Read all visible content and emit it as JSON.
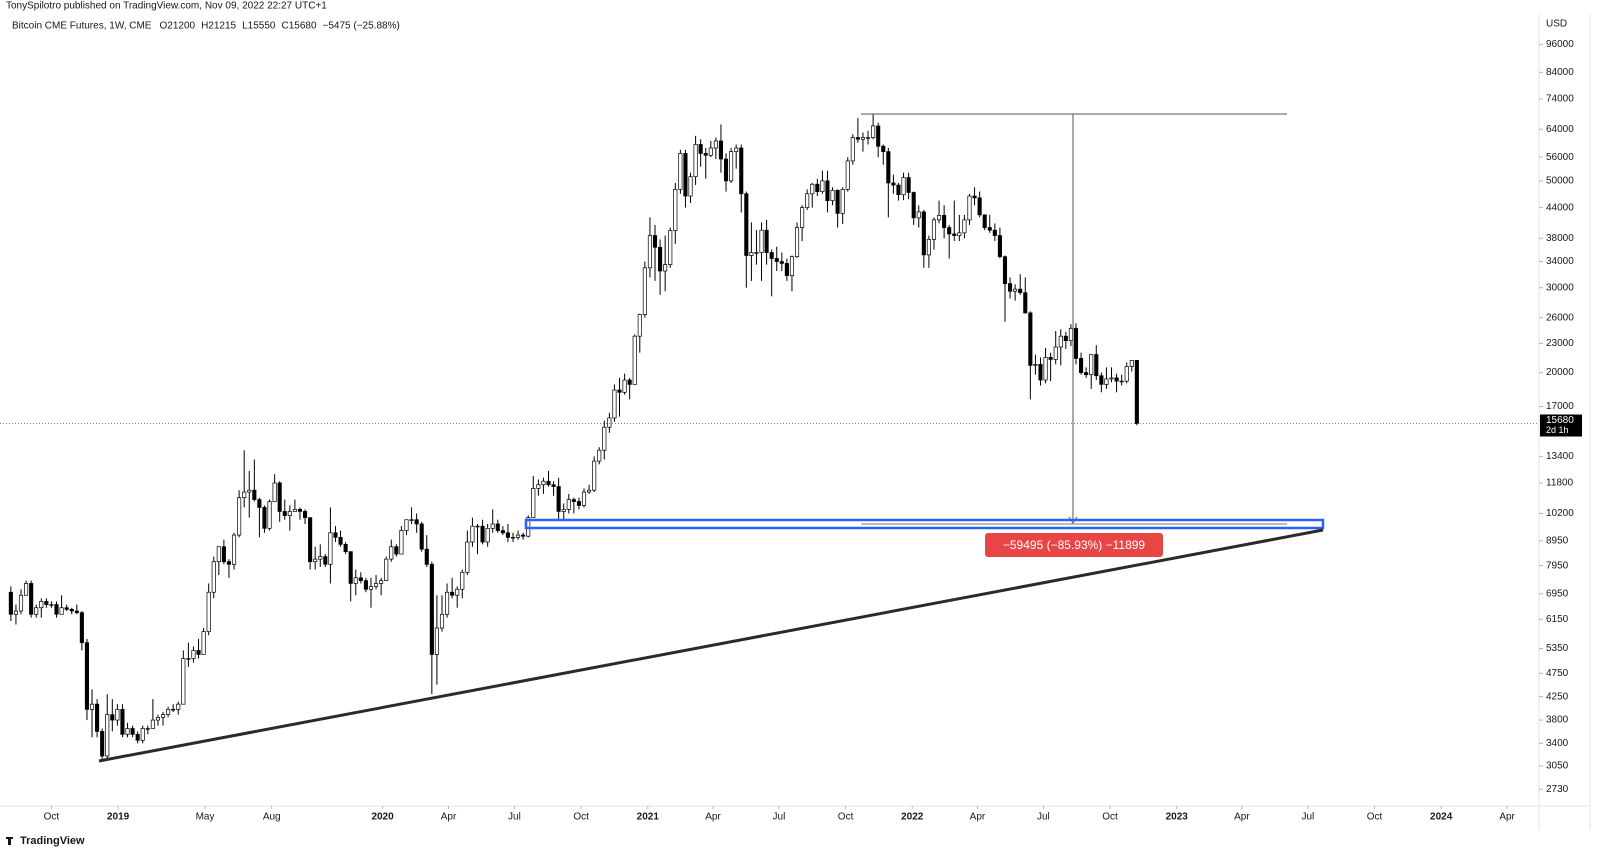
{
  "header": {
    "publisher": "TonySpilotro published on TradingView.com, Nov 09, 2022 22:27 UTC+1",
    "symbol": "Bitcoin CME Futures, 1W, CME",
    "ohlc": [
      "O21200",
      "H21215",
      "L15550",
      "C15680",
      "−5475 (−25.88%)"
    ],
    "brand": "TradingView"
  },
  "chart_data": {
    "type": "candlestick",
    "y_axis_label": "USD",
    "log_scale": true,
    "grid": false,
    "up_color": "#ffffff",
    "down_color": "#000000",
    "outline_color": "#000000",
    "measure_label": "−59495 (−85.93%) −11899",
    "countdown": "2d 1h",
    "xlim": [
      "2018-07-22",
      "2024-05-15"
    ],
    "ylim": [
      2520,
      111000
    ],
    "yticks": [
      96000,
      84000,
      74000,
      64000,
      56000,
      50000,
      44000,
      38000,
      34000,
      30000,
      26000,
      23000,
      20000,
      17000,
      13400,
      11800,
      10200,
      8950,
      7950,
      6950,
      6150,
      5350,
      4750,
      4250,
      3800,
      3400,
      3050,
      2730
    ],
    "xticks": [
      {
        "value": "2018-10-01",
        "label": "Oct"
      },
      {
        "value": "2019-01-01",
        "label": "2019"
      },
      {
        "value": "2019-05-01",
        "label": "May"
      },
      {
        "value": "2019-08-01",
        "label": "Aug"
      },
      {
        "value": "2020-01-01",
        "label": "2020"
      },
      {
        "value": "2020-04-01",
        "label": "Apr"
      },
      {
        "value": "2020-07-01",
        "label": "Jul"
      },
      {
        "value": "2020-10-01",
        "label": "Oct"
      },
      {
        "value": "2021-01-01",
        "label": "2021"
      },
      {
        "value": "2021-04-01",
        "label": "Apr"
      },
      {
        "value": "2021-07-01",
        "label": "Jul"
      },
      {
        "value": "2021-10-01",
        "label": "Oct"
      },
      {
        "value": "2022-01-01",
        "label": "2022"
      },
      {
        "value": "2022-04-01",
        "label": "Apr"
      },
      {
        "value": "2022-07-01",
        "label": "Jul"
      },
      {
        "value": "2022-10-01",
        "label": "Oct"
      },
      {
        "value": "2023-01-01",
        "label": "2023"
      },
      {
        "value": "2023-04-01",
        "label": "Apr"
      },
      {
        "value": "2023-07-01",
        "label": "Jul"
      },
      {
        "value": "2023-10-01",
        "label": "Oct"
      },
      {
        "value": "2024-01-01",
        "label": "2024"
      },
      {
        "value": "2024-04-01",
        "label": "Apr"
      }
    ],
    "x": [
      "2018-08-06",
      "2018-08-13",
      "2018-08-20",
      "2018-08-27",
      "2018-09-03",
      "2018-09-10",
      "2018-09-17",
      "2018-09-24",
      "2018-10-01",
      "2018-10-08",
      "2018-10-15",
      "2018-10-22",
      "2018-10-29",
      "2018-11-05",
      "2018-11-12",
      "2018-11-19",
      "2018-11-26",
      "2018-12-03",
      "2018-12-10",
      "2018-12-17",
      "2018-12-24",
      "2018-12-31",
      "2019-01-07",
      "2019-01-14",
      "2019-01-21",
      "2019-01-28",
      "2019-02-04",
      "2019-02-11",
      "2019-02-18",
      "2019-02-25",
      "2019-03-04",
      "2019-03-11",
      "2019-03-18",
      "2019-03-25",
      "2019-04-01",
      "2019-04-08",
      "2019-04-15",
      "2019-04-22",
      "2019-04-29",
      "2019-05-06",
      "2019-05-13",
      "2019-05-20",
      "2019-05-27",
      "2019-06-03",
      "2019-06-10",
      "2019-06-17",
      "2019-06-24",
      "2019-07-01",
      "2019-07-08",
      "2019-07-15",
      "2019-07-22",
      "2019-07-29",
      "2019-08-05",
      "2019-08-12",
      "2019-08-19",
      "2019-08-26",
      "2019-09-02",
      "2019-09-09",
      "2019-09-16",
      "2019-09-23",
      "2019-09-30",
      "2019-10-07",
      "2019-10-14",
      "2019-10-21",
      "2019-10-28",
      "2019-11-04",
      "2019-11-11",
      "2019-11-18",
      "2019-11-25",
      "2019-12-02",
      "2019-12-09",
      "2019-12-16",
      "2019-12-23",
      "2019-12-30",
      "2020-01-06",
      "2020-01-13",
      "2020-01-20",
      "2020-01-27",
      "2020-02-03",
      "2020-02-10",
      "2020-02-17",
      "2020-02-24",
      "2020-03-02",
      "2020-03-09",
      "2020-03-16",
      "2020-03-23",
      "2020-03-30",
      "2020-04-06",
      "2020-04-13",
      "2020-04-20",
      "2020-04-27",
      "2020-05-04",
      "2020-05-11",
      "2020-05-18",
      "2020-05-25",
      "2020-06-01",
      "2020-06-08",
      "2020-06-15",
      "2020-06-22",
      "2020-06-29",
      "2020-07-06",
      "2020-07-13",
      "2020-07-20",
      "2020-07-27",
      "2020-08-03",
      "2020-08-10",
      "2020-08-17",
      "2020-08-24",
      "2020-08-31",
      "2020-09-07",
      "2020-09-14",
      "2020-09-21",
      "2020-09-28",
      "2020-10-05",
      "2020-10-12",
      "2020-10-19",
      "2020-10-26",
      "2020-11-02",
      "2020-11-09",
      "2020-11-16",
      "2020-11-23",
      "2020-11-30",
      "2020-12-07",
      "2020-12-14",
      "2020-12-21",
      "2020-12-28",
      "2021-01-04",
      "2021-01-11",
      "2021-01-18",
      "2021-01-25",
      "2021-02-01",
      "2021-02-08",
      "2021-02-15",
      "2021-02-22",
      "2021-03-01",
      "2021-03-08",
      "2021-03-15",
      "2021-03-22",
      "2021-03-29",
      "2021-04-05",
      "2021-04-12",
      "2021-04-19",
      "2021-04-26",
      "2021-05-03",
      "2021-05-10",
      "2021-05-17",
      "2021-05-24",
      "2021-05-31",
      "2021-06-07",
      "2021-06-14",
      "2021-06-21",
      "2021-06-28",
      "2021-07-05",
      "2021-07-12",
      "2021-07-19",
      "2021-07-26",
      "2021-08-02",
      "2021-08-09",
      "2021-08-16",
      "2021-08-23",
      "2021-08-30",
      "2021-09-06",
      "2021-09-13",
      "2021-09-20",
      "2021-09-27",
      "2021-10-04",
      "2021-10-11",
      "2021-10-18",
      "2021-10-25",
      "2021-11-01",
      "2021-11-08",
      "2021-11-15",
      "2021-11-22",
      "2021-11-29",
      "2021-12-06",
      "2021-12-13",
      "2021-12-20",
      "2021-12-27",
      "2022-01-03",
      "2022-01-10",
      "2022-01-17",
      "2022-01-24",
      "2022-01-31",
      "2022-02-07",
      "2022-02-14",
      "2022-02-21",
      "2022-02-28",
      "2022-03-07",
      "2022-03-14",
      "2022-03-21",
      "2022-03-28",
      "2022-04-04",
      "2022-04-11",
      "2022-04-18",
      "2022-04-25",
      "2022-05-02",
      "2022-05-09",
      "2022-05-16",
      "2022-05-23",
      "2022-05-30",
      "2022-06-06",
      "2022-06-13",
      "2022-06-20",
      "2022-06-27",
      "2022-07-04",
      "2022-07-11",
      "2022-07-18",
      "2022-07-25",
      "2022-08-01",
      "2022-08-08",
      "2022-08-15",
      "2022-08-22",
      "2022-08-29",
      "2022-09-05",
      "2022-09-12",
      "2022-09-19",
      "2022-09-26",
      "2022-10-03",
      "2022-10-10",
      "2022-10-17",
      "2022-10-24",
      "2022-10-31",
      "2022-11-07"
    ],
    "open": [
      7000,
      6300,
      6400,
      6900,
      7300,
      6300,
      6500,
      6700,
      6600,
      6600,
      6300,
      6500,
      6450,
      6400,
      6350,
      5500,
      4000,
      4100,
      3600,
      3200,
      3900,
      3800,
      4000,
      3550,
      3650,
      3550,
      3450,
      3650,
      3650,
      3800,
      3850,
      3900,
      4000,
      4000,
      4100,
      5100,
      5100,
      5300,
      5200,
      5800,
      7000,
      8100,
      8700,
      8100,
      8000,
      9200,
      11000,
      11300,
      11400,
      10900,
      10500,
      9500,
      10800,
      11800,
      10300,
      10100,
      10300,
      10400,
      10300,
      10000,
      8100,
      8200,
      8300,
      8000,
      9300,
      9100,
      8800,
      8500,
      7300,
      7500,
      7400,
      7100,
      7200,
      7300,
      7400,
      8200,
      8700,
      8400,
      9400,
      9900,
      9900,
      9700,
      8600,
      8000,
      5200,
      5900,
      6300,
      7000,
      6900,
      7100,
      7700,
      8900,
      9600,
      9600,
      8900,
      9500,
      9700,
      9400,
      9300,
      9100,
      9100,
      9200,
      9150,
      10000,
      11500,
      11700,
      11900,
      11700,
      11600,
      10300,
      10400,
      10900,
      10800,
      10600,
      11300,
      11400,
      13100,
      13800,
      15400,
      16100,
      18400,
      18200,
      19300,
      18900,
      23800,
      26400,
      33000,
      38500,
      36400,
      32500,
      33500,
      39400,
      48000,
      57000,
      46500,
      51000,
      59500,
      57000,
      56500,
      58500,
      60500,
      55500,
      50000,
      57500,
      58500,
      47000,
      35000,
      35500,
      35500,
      39500,
      35500,
      34500,
      34000,
      33700,
      31800,
      34800,
      40000,
      44000,
      47000,
      49200,
      47500,
      50000,
      45500,
      47800,
      42800,
      48000,
      55000,
      61500,
      61000,
      61500,
      61500,
      65000,
      59000,
      57500,
      49500,
      49000,
      46800,
      50800,
      47300,
      41900,
      43100,
      35100,
      37800,
      41500,
      42400,
      40000,
      38800,
      38500,
      39000,
      41500,
      46500,
      46100,
      42500,
      40000,
      39500,
      38500,
      34800,
      30600,
      29500,
      29800,
      29300,
      26600,
      20700,
      20800,
      19300,
      21500,
      21300,
      22600,
      23800,
      23300,
      24700,
      21400,
      20000,
      19800,
      21800,
      19700,
      18900,
      19400,
      19500,
      19200,
      19200,
      20600,
      21200
    ],
    "high": [
      7200,
      6600,
      7100,
      7400,
      7400,
      6600,
      6800,
      6800,
      6700,
      6700,
      6900,
      6600,
      6500,
      6600,
      6400,
      5600,
      4400,
      4200,
      3650,
      4300,
      4200,
      4100,
      4100,
      3750,
      3700,
      3600,
      3700,
      3700,
      4200,
      3900,
      3950,
      4050,
      4100,
      4150,
      5300,
      5500,
      5400,
      5600,
      5900,
      7300,
      8300,
      8700,
      9000,
      8200,
      9300,
      11400,
      13800,
      12500,
      13200,
      11000,
      10600,
      10900,
      12300,
      11900,
      10900,
      10600,
      10900,
      10500,
      10400,
      10000,
      8700,
      8800,
      8400,
      10500,
      9600,
      9400,
      8900,
      8500,
      7800,
      7700,
      7500,
      7500,
      7600,
      7500,
      8300,
      9000,
      8800,
      9600,
      9900,
      10500,
      10200,
      9800,
      9200,
      8100,
      6900,
      6900,
      7300,
      7500,
      7200,
      7800,
      9400,
      10000,
      9700,
      9900,
      9700,
      10400,
      9900,
      9600,
      9700,
      9300,
      9400,
      9300,
      10100,
      12200,
      12000,
      12100,
      12500,
      11900,
      12100,
      10700,
      11200,
      11000,
      11000,
      11500,
      11700,
      13400,
      14000,
      15900,
      16500,
      18900,
      19500,
      19900,
      19500,
      24000,
      26500,
      34000,
      42000,
      40500,
      37800,
      38500,
      40000,
      49500,
      58000,
      58000,
      52000,
      62000,
      61000,
      58500,
      60500,
      61500,
      65500,
      57000,
      58500,
      59500,
      59500,
      47500,
      41000,
      39500,
      41000,
      41500,
      36000,
      36500,
      35500,
      34500,
      35000,
      41000,
      44500,
      48000,
      49500,
      50500,
      52500,
      52500,
      48500,
      48000,
      48500,
      56000,
      62500,
      67500,
      63000,
      63500,
      69000,
      66000,
      59500,
      58500,
      51500,
      49500,
      52000,
      52000,
      47500,
      44500,
      43500,
      38500,
      42000,
      45500,
      44500,
      40500,
      45500,
      42500,
      42500,
      47000,
      48500,
      47500,
      42600,
      42500,
      40800,
      40000,
      35000,
      31500,
      30500,
      32000,
      31500,
      26800,
      21800,
      21500,
      22500,
      22000,
      24400,
      24600,
      24300,
      25200,
      25300,
      22000,
      20500,
      21800,
      22800,
      20000,
      20500,
      20500,
      19900,
      19800,
      21000,
      21200,
      21215
    ],
    "low": [
      6100,
      6000,
      6300,
      6900,
      6200,
      6200,
      6200,
      6500,
      6500,
      6200,
      6300,
      6400,
      6300,
      6300,
      5300,
      3800,
      3500,
      3500,
      3150,
      3150,
      3600,
      3700,
      3500,
      3500,
      3500,
      3400,
      3400,
      3550,
      3650,
      3700,
      3700,
      3850,
      3950,
      3900,
      4100,
      4900,
      5000,
      5100,
      5200,
      5700,
      6800,
      7600,
      8000,
      7500,
      7800,
      9100,
      10500,
      10000,
      10800,
      9100,
      9300,
      9400,
      10800,
      9800,
      9900,
      9400,
      10300,
      9900,
      9700,
      7800,
      7800,
      7900,
      7900,
      7300,
      8900,
      8700,
      8400,
      6700,
      6900,
      7300,
      7000,
      6500,
      7100,
      6900,
      7400,
      8100,
      8300,
      8400,
      9200,
      9700,
      9300,
      8500,
      7900,
      4300,
      4500,
      5800,
      6200,
      6800,
      6500,
      6800,
      7600,
      8700,
      8400,
      8800,
      8700,
      9300,
      9300,
      9200,
      8900,
      8900,
      9000,
      9000,
      9100,
      10000,
      11100,
      11200,
      11600,
      11100,
      9900,
      9900,
      10200,
      10200,
      10400,
      10500,
      11200,
      11300,
      12900,
      13200,
      15000,
      15800,
      16200,
      18000,
      17600,
      18900,
      22000,
      26000,
      31500,
      31000,
      29000,
      29500,
      33000,
      37000,
      47000,
      44000,
      45000,
      49000,
      53500,
      50500,
      56000,
      55500,
      52000,
      47500,
      49500,
      53000,
      43000,
      30000,
      31000,
      33500,
      31000,
      33500,
      28800,
      32500,
      32500,
      31000,
      29500,
      34600,
      37500,
      43500,
      44000,
      46500,
      47000,
      43000,
      44500,
      40000,
      40700,
      47500,
      54000,
      60000,
      57500,
      59500,
      61000,
      56000,
      54000,
      42000,
      47000,
      45500,
      45600,
      45800,
      40500,
      40000,
      33000,
      33000,
      36000,
      40800,
      38000,
      34500,
      37500,
      37500,
      38000,
      40500,
      44500,
      42000,
      39500,
      39000,
      37500,
      34500,
      25500,
      28500,
      28200,
      29000,
      26500,
      17600,
      19800,
      18800,
      19000,
      19200,
      20800,
      20700,
      22400,
      22700,
      20800,
      19800,
      19500,
      18500,
      19300,
      18200,
      18500,
      19100,
      18200,
      18800,
      19000,
      20100,
      15550
    ],
    "close": [
      6300,
      6400,
      6900,
      7300,
      6300,
      6500,
      6700,
      6600,
      6600,
      6300,
      6500,
      6450,
      6400,
      6350,
      5500,
      4000,
      4100,
      3600,
      3200,
      3900,
      3800,
      4000,
      3550,
      3650,
      3550,
      3450,
      3650,
      3650,
      3800,
      3850,
      3900,
      4000,
      4000,
      4100,
      5100,
      5100,
      5300,
      5200,
      5800,
      7000,
      8100,
      8700,
      8100,
      8000,
      9200,
      11000,
      11300,
      11400,
      10900,
      10500,
      9500,
      10800,
      11800,
      10300,
      10100,
      10300,
      10400,
      10300,
      10000,
      8100,
      8200,
      8300,
      8000,
      9300,
      9100,
      8800,
      8500,
      7300,
      7500,
      7400,
      7100,
      7200,
      7300,
      7400,
      8200,
      8700,
      8400,
      9400,
      9900,
      9900,
      9700,
      8600,
      8000,
      5200,
      5900,
      6300,
      7000,
      6900,
      7100,
      7700,
      8900,
      9600,
      9600,
      8900,
      9500,
      9700,
      9400,
      9300,
      9100,
      9100,
      9200,
      9150,
      10000,
      11500,
      11700,
      11900,
      11700,
      11600,
      10300,
      10400,
      10900,
      10800,
      10600,
      11300,
      11400,
      13100,
      13800,
      15400,
      16100,
      18400,
      18200,
      19300,
      18900,
      23800,
      26400,
      33000,
      38500,
      36400,
      32500,
      33500,
      39400,
      48000,
      57000,
      46500,
      51000,
      59500,
      57000,
      56500,
      58500,
      60500,
      55500,
      50000,
      57500,
      58500,
      47000,
      35000,
      35500,
      35500,
      39500,
      35500,
      34500,
      34000,
      33700,
      31800,
      34800,
      40000,
      44000,
      47000,
      49200,
      47500,
      50000,
      45500,
      47800,
      42800,
      48000,
      55000,
      61500,
      61000,
      61500,
      61500,
      65000,
      59000,
      57500,
      49500,
      49000,
      46800,
      50800,
      47300,
      41900,
      43100,
      35100,
      37800,
      41500,
      42400,
      40000,
      38800,
      38500,
      39000,
      41500,
      46500,
      46100,
      42500,
      40000,
      39500,
      38500,
      34800,
      30600,
      29500,
      29800,
      29300,
      26600,
      20700,
      20800,
      19300,
      21500,
      21300,
      22600,
      23800,
      23300,
      24700,
      21400,
      20000,
      19800,
      21800,
      19700,
      18900,
      19400,
      19500,
      19200,
      19200,
      20600,
      21200,
      15680
    ]
  }
}
